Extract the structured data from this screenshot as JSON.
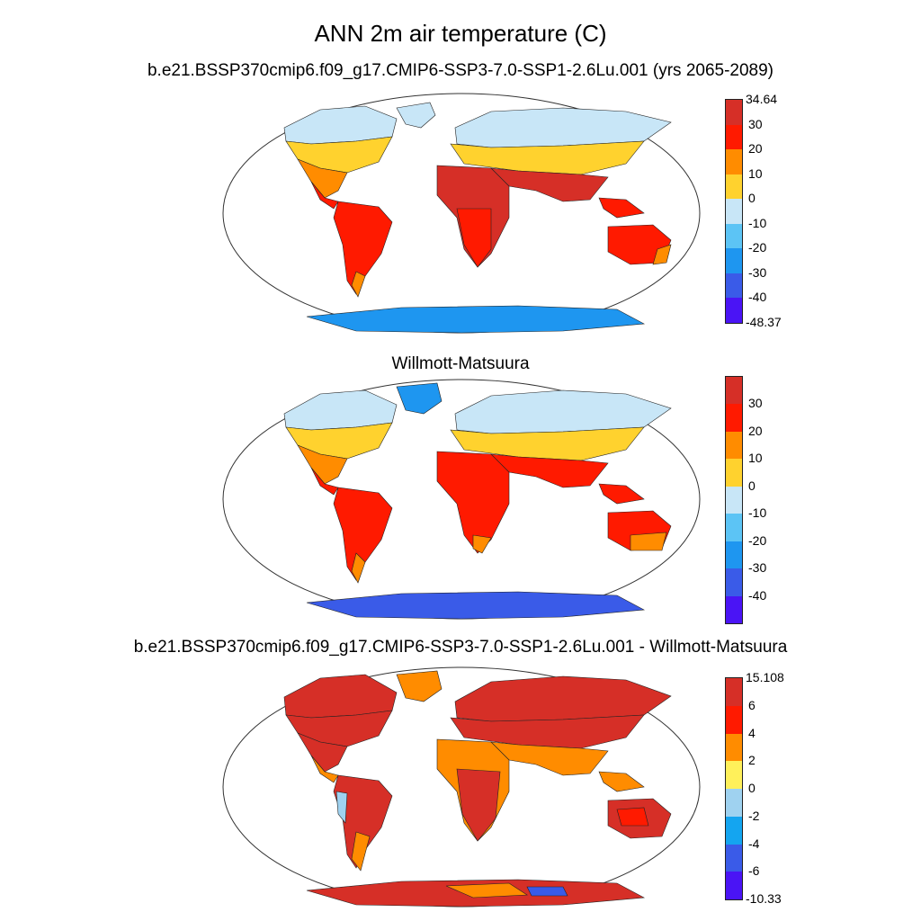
{
  "title": "ANN 2m air temperature (C)",
  "panels": [
    {
      "title": "b.e21.BSSP370cmip6.f09_g17.CMIP6-SSP3-7.0-SSP1-2.6Lu.001 (yrs 2065-2089)",
      "colorbar": {
        "colors": [
          "#d62f27",
          "#ff1a00",
          "#ff8c00",
          "#ffd22e",
          "#c8e6f7",
          "#5cc4f5",
          "#1e96f0",
          "#3a5be8",
          "#4a14f5"
        ],
        "labels": [
          "34.64",
          "30",
          "20",
          "10",
          "0",
          "-10",
          "-20",
          "-30",
          "-40",
          "-48.37"
        ]
      }
    },
    {
      "title": "Willmott-Matsuura",
      "colorbar": {
        "colors": [
          "#d62f27",
          "#ff1a00",
          "#ff8c00",
          "#ffd22e",
          "#c8e6f7",
          "#5cc4f5",
          "#1e96f0",
          "#3a5be8",
          "#4a14f5"
        ],
        "labels": [
          "30",
          "20",
          "10",
          "0",
          "-10",
          "-20",
          "-30",
          "-40"
        ]
      }
    },
    {
      "title": "b.e21.BSSP370cmip6.f09_g17.CMIP6-SSP3-7.0-SSP1-2.6Lu.001 - Willmott-Matsuura",
      "colorbar": {
        "colors": [
          "#d62f27",
          "#ff1a00",
          "#ff8c00",
          "#fff05a",
          "#9fd2f0",
          "#14a5f0",
          "#3a5be8",
          "#4a14f5"
        ],
        "labels": [
          "15.108",
          "6",
          "4",
          "2",
          "0",
          "-2",
          "-4",
          "-6",
          "-10.33"
        ]
      }
    }
  ]
}
